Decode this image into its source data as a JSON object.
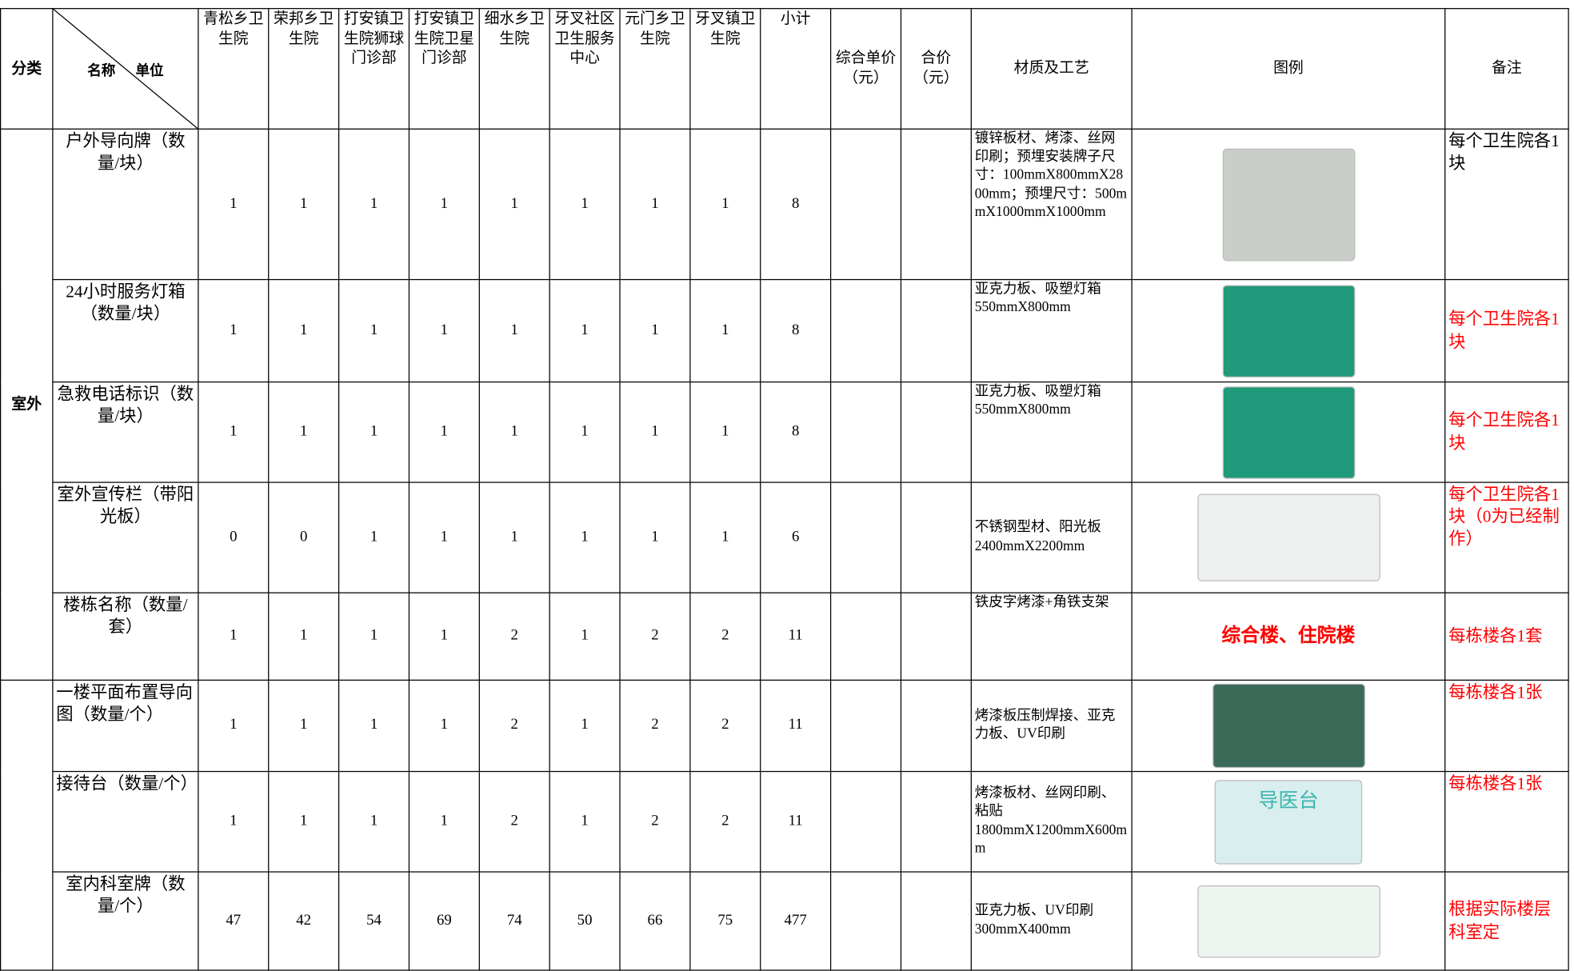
{
  "header": {
    "category": "分类",
    "name": "名称",
    "unit": "单位",
    "units": [
      "青松乡卫生院",
      "荣邦乡卫生院",
      "打安镇卫生院狮球门诊部",
      "打安镇卫生院卫星门诊部",
      "细水乡卫生院",
      "牙叉社区卫生服务中心",
      "元门乡卫生院",
      "牙叉镇卫生院"
    ],
    "subtotal": "小计",
    "unit_price": "综合单价（元）",
    "total_price": "合价（元）",
    "material": "材质及工艺",
    "legend": "图例",
    "remark": "备注"
  },
  "category": "室外",
  "rows": [
    {
      "name": "户外导向牌（数量/块）",
      "counts": [
        1,
        1,
        1,
        1,
        1,
        1,
        1,
        1
      ],
      "subtotal": 8,
      "material": "镀锌板材、烤漆、丝网印刷；预埋安装牌子尺寸：100mmX800mmX2800mm；预埋尺寸：500mmX1000mmX1000mm",
      "remark": "每个卫生院各1块",
      "remark_color": "#000000"
    },
    {
      "name": "24小时服务灯箱（数量/块）",
      "counts": [
        1,
        1,
        1,
        1,
        1,
        1,
        1,
        1
      ],
      "subtotal": 8,
      "material": "亚克力板、吸塑灯箱\n550mmX800mm",
      "remark": "每个卫生院各1块",
      "remark_color": "#ff0000"
    },
    {
      "name": "急救电话标识（数量/块）",
      "counts": [
        1,
        1,
        1,
        1,
        1,
        1,
        1,
        1
      ],
      "subtotal": 8,
      "material": "亚克力板、吸塑灯箱\n550mmX800mm",
      "remark": "每个卫生院各1块",
      "remark_color": "#ff0000"
    },
    {
      "name": "室外宣传栏（带阳光板）",
      "counts": [
        0,
        0,
        1,
        1,
        1,
        1,
        1,
        1
      ],
      "subtotal": 6,
      "material": "不锈钢型材、阳光板\n2400mmX2200mm",
      "remark": "每个卫生院各1块（0为已经制作）",
      "remark_color": "#ff0000"
    },
    {
      "name": "楼栋名称（数量/套）",
      "counts": [
        1,
        1,
        1,
        1,
        2,
        1,
        2,
        2
      ],
      "subtotal": 11,
      "material": "铁皮字烤漆+角铁支架",
      "legend_text": "综合楼、住院楼",
      "remark": "每栋楼各1套",
      "remark_color": "#ff0000"
    },
    {
      "name": "一楼平面布置导向图（数量/个）",
      "counts": [
        1,
        1,
        1,
        1,
        2,
        1,
        2,
        2
      ],
      "subtotal": 11,
      "material": "烤漆板压制焊接、亚克力板、UV印刷",
      "remark": "每栋楼各1张",
      "remark_color": "#ff0000"
    },
    {
      "name": "接待台（数量/个）",
      "counts": [
        1,
        1,
        1,
        1,
        2,
        1,
        2,
        2
      ],
      "subtotal": 11,
      "material": "烤漆板材、丝网印刷、粘贴\n1800mmX1200mmX600mm",
      "legend_text": "导医台",
      "remark": "每栋楼各1张",
      "remark_color": "#ff0000"
    },
    {
      "name": "室内科室牌（数量/个）",
      "counts": [
        47,
        42,
        54,
        69,
        74,
        50,
        66,
        75
      ],
      "subtotal": 477,
      "material": "亚克力板、UV印刷\n300mmX400mm",
      "remark": "根据实际楼层科室定",
      "remark_color": "#ff0000"
    }
  ]
}
